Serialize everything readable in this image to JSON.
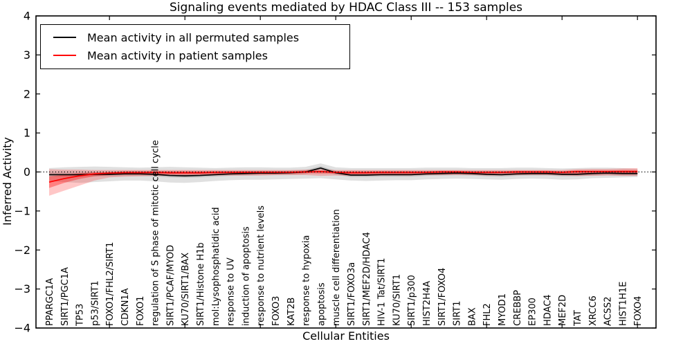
{
  "chart_data": {
    "type": "line",
    "title": "Signaling events mediated by HDAC Class III -- 153 samples",
    "xlabel": "Cellular Entities",
    "ylabel": "Inferred Activity",
    "ylim": [
      -4,
      4
    ],
    "yticks": [
      -4,
      -3,
      -2,
      -1,
      0,
      1,
      2,
      3,
      4
    ],
    "xticks_every": 5,
    "grid": false,
    "legend_position": "upper left",
    "frame_color": "#000000",
    "categories": [
      "PPARGC1A",
      "SIRT1/PGC1A",
      "TP53",
      "p53/SIRT1",
      "FOXO1/FHL2/SIRT1",
      "CDKN1A",
      "FOXO1",
      "regulation of S phase of mitotic cell cycle",
      "SIRT1/PCAF/MYOD",
      "KU70/SIRT1/BAX",
      "SIRT1/Histone H1b",
      "mol:Lysophosphatidic acid",
      "response to UV",
      "induction of apoptosis",
      "response to nutrient levels",
      "FOXO3",
      "KAT2B",
      "response to hypoxia",
      "apoptosis",
      "muscle cell differentiation",
      "SIRT1/FOXO3a",
      "SIRT1/MEF2D/HDAC4",
      "HIV-1 Tat/SIRT1",
      "KU70/SIRT1",
      "SIRT1/p300",
      "HIST2H4A",
      "SIRT1/FOXO4",
      "SIRT1",
      "BAX",
      "FHL2",
      "MYOD1",
      "CREBBP",
      "EP300",
      "HDAC4",
      "MEF2D",
      "TAT",
      "XRCC6",
      "ACSS2",
      "HIST1H1E",
      "FOXO4"
    ],
    "series": [
      {
        "name": "Mean activity in all permuted samples",
        "color": "#000000",
        "values": [
          -0.07,
          -0.07,
          -0.07,
          -0.06,
          -0.06,
          -0.05,
          -0.05,
          -0.06,
          -0.09,
          -0.1,
          -0.09,
          -0.07,
          -0.05,
          -0.04,
          -0.03,
          -0.03,
          -0.02,
          0.0,
          0.1,
          -0.02,
          -0.08,
          -0.08,
          -0.07,
          -0.07,
          -0.07,
          -0.05,
          -0.04,
          -0.03,
          -0.04,
          -0.06,
          -0.07,
          -0.05,
          -0.04,
          -0.04,
          -0.06,
          -0.06,
          -0.04,
          -0.03,
          -0.04,
          -0.04
        ]
      },
      {
        "name": "Mean activity in patient samples",
        "color": "#ff0000",
        "values": [
          -0.26,
          -0.17,
          -0.1,
          -0.05,
          -0.03,
          -0.02,
          -0.02,
          -0.01,
          -0.02,
          -0.02,
          -0.02,
          -0.01,
          -0.01,
          -0.01,
          -0.01,
          -0.01,
          -0.01,
          0.0,
          0.01,
          -0.01,
          -0.02,
          -0.02,
          -0.01,
          -0.01,
          -0.01,
          -0.01,
          0.0,
          0.0,
          -0.01,
          -0.01,
          -0.01,
          0.0,
          0.0,
          0.0,
          -0.01,
          0.01,
          0.01,
          0.01,
          0.01,
          0.01
        ]
      }
    ],
    "bands": [
      {
        "name": "permuted-band-outer",
        "color": "rgba(0,0,0,0.12)",
        "upper": [
          0.1,
          0.12,
          0.13,
          0.14,
          0.13,
          0.12,
          0.11,
          0.12,
          0.13,
          0.12,
          0.11,
          0.1,
          0.11,
          0.12,
          0.12,
          0.11,
          0.11,
          0.13,
          0.22,
          0.12,
          0.1,
          0.1,
          0.1,
          0.1,
          0.1,
          0.11,
          0.11,
          0.11,
          0.1,
          0.1,
          0.1,
          0.11,
          0.11,
          0.1,
          0.09,
          0.1,
          0.11,
          0.11,
          0.1,
          0.08
        ],
        "lower": [
          -0.23,
          -0.26,
          -0.28,
          -0.26,
          -0.24,
          -0.22,
          -0.22,
          -0.24,
          -0.27,
          -0.28,
          -0.26,
          -0.23,
          -0.21,
          -0.2,
          -0.2,
          -0.19,
          -0.18,
          -0.17,
          -0.16,
          -0.19,
          -0.22,
          -0.23,
          -0.22,
          -0.21,
          -0.21,
          -0.19,
          -0.18,
          -0.17,
          -0.18,
          -0.19,
          -0.2,
          -0.18,
          -0.17,
          -0.18,
          -0.2,
          -0.19,
          -0.16,
          -0.15,
          -0.14,
          -0.13
        ]
      },
      {
        "name": "permuted-band-inner",
        "color": "rgba(0,0,0,0.12)",
        "upper": [
          -0.02,
          -0.02,
          -0.02,
          -0.01,
          -0.01,
          0.0,
          0.0,
          -0.01,
          -0.04,
          -0.05,
          -0.04,
          -0.02,
          0.0,
          0.01,
          0.02,
          0.02,
          0.03,
          0.05,
          0.15,
          0.03,
          -0.03,
          -0.03,
          -0.02,
          -0.02,
          -0.02,
          0.0,
          0.01,
          0.02,
          0.01,
          -0.01,
          -0.02,
          0.0,
          0.01,
          0.01,
          -0.01,
          -0.01,
          0.01,
          0.02,
          0.01,
          0.01
        ],
        "lower": [
          -0.12,
          -0.12,
          -0.12,
          -0.11,
          -0.11,
          -0.1,
          -0.1,
          -0.11,
          -0.14,
          -0.15,
          -0.14,
          -0.12,
          -0.1,
          -0.09,
          -0.08,
          -0.08,
          -0.07,
          -0.05,
          0.05,
          -0.07,
          -0.13,
          -0.13,
          -0.12,
          -0.12,
          -0.12,
          -0.1,
          -0.09,
          -0.08,
          -0.09,
          -0.11,
          -0.12,
          -0.1,
          -0.09,
          -0.09,
          -0.11,
          -0.11,
          -0.09,
          -0.08,
          -0.09,
          -0.09
        ]
      },
      {
        "name": "patient-band-outer",
        "color": "rgba(255,0,0,0.22)",
        "upper": [
          0.07,
          0.06,
          0.06,
          0.05,
          0.05,
          0.05,
          0.05,
          0.05,
          0.05,
          0.05,
          0.05,
          0.05,
          0.05,
          0.05,
          0.05,
          0.05,
          0.05,
          0.06,
          0.07,
          0.05,
          0.05,
          0.05,
          0.05,
          0.05,
          0.05,
          0.05,
          0.05,
          0.05,
          0.05,
          0.05,
          0.05,
          0.05,
          0.05,
          0.05,
          0.05,
          0.07,
          0.08,
          0.08,
          0.09,
          0.1
        ],
        "lower": [
          -0.61,
          -0.48,
          -0.35,
          -0.22,
          -0.14,
          -0.12,
          -0.11,
          -0.1,
          -0.1,
          -0.1,
          -0.1,
          -0.09,
          -0.09,
          -0.09,
          -0.09,
          -0.08,
          -0.08,
          -0.08,
          -0.1,
          -0.09,
          -0.1,
          -0.1,
          -0.09,
          -0.09,
          -0.09,
          -0.08,
          -0.08,
          -0.08,
          -0.08,
          -0.09,
          -0.09,
          -0.08,
          -0.08,
          -0.08,
          -0.09,
          -0.1,
          -0.1,
          -0.09,
          -0.1,
          -0.1
        ]
      },
      {
        "name": "patient-band-inner",
        "color": "rgba(255,0,0,0.35)",
        "upper": [
          -0.12,
          -0.07,
          -0.03,
          -0.01,
          0.0,
          0.02,
          0.02,
          0.02,
          0.02,
          0.02,
          0.02,
          0.02,
          0.02,
          0.02,
          0.02,
          0.02,
          0.02,
          0.03,
          0.04,
          0.02,
          0.02,
          0.02,
          0.02,
          0.02,
          0.02,
          0.02,
          0.03,
          0.03,
          0.02,
          0.02,
          0.02,
          0.03,
          0.03,
          0.03,
          0.02,
          0.04,
          0.04,
          0.04,
          0.05,
          0.05
        ],
        "lower": [
          -0.41,
          -0.28,
          -0.18,
          -0.11,
          -0.08,
          -0.06,
          -0.06,
          -0.05,
          -0.06,
          -0.06,
          -0.06,
          -0.05,
          -0.05,
          -0.05,
          -0.05,
          -0.05,
          -0.04,
          -0.03,
          -0.04,
          -0.04,
          -0.05,
          -0.05,
          -0.05,
          -0.05,
          -0.05,
          -0.04,
          -0.04,
          -0.03,
          -0.04,
          -0.04,
          -0.04,
          -0.03,
          -0.03,
          -0.03,
          -0.04,
          -0.04,
          -0.04,
          -0.04,
          -0.04,
          -0.04
        ]
      }
    ],
    "reference_line": {
      "y": 0,
      "style": "dotted",
      "color": "#000000"
    }
  },
  "legend": {
    "items": [
      {
        "label": "Mean activity in all permuted samples",
        "color": "#000000"
      },
      {
        "label": "Mean activity in patient samples",
        "color": "#ff0000"
      }
    ]
  }
}
